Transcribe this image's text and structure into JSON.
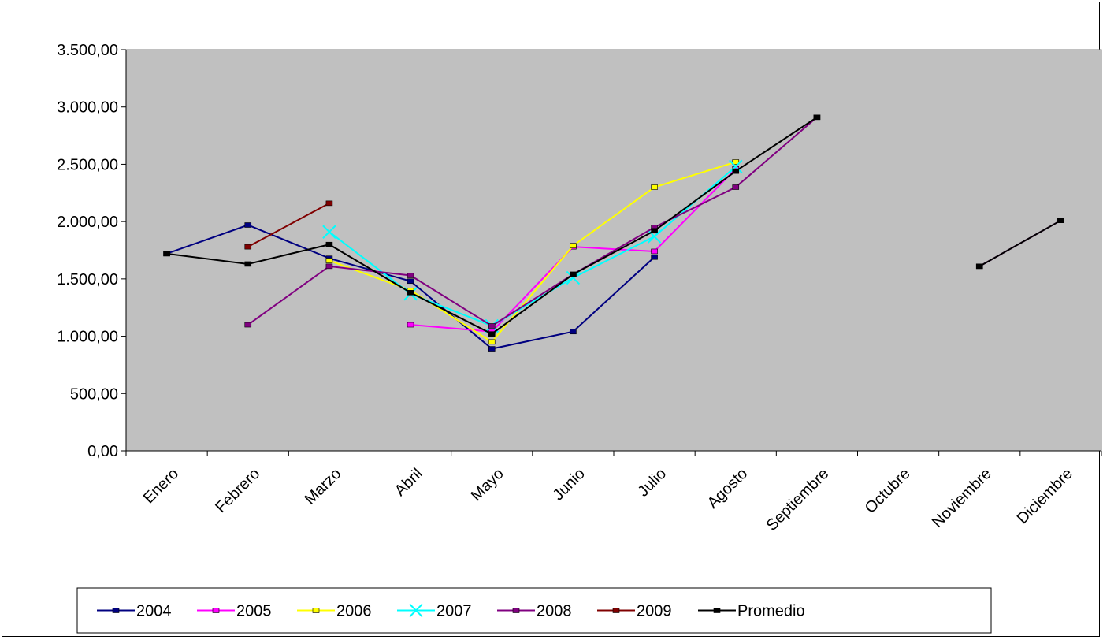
{
  "chart_data": {
    "type": "line",
    "title": "",
    "xlabel": "",
    "ylabel": "",
    "categories": [
      "Enero",
      "Febrero",
      "Marzo",
      "Abril",
      "Mayo",
      "Junio",
      "Julio",
      "Agosto",
      "Septiembre",
      "Octubre",
      "Noviembre",
      "Diciembre"
    ],
    "ylim": [
      0,
      3500
    ],
    "yticks": [
      0,
      500,
      1000,
      1500,
      2000,
      2500,
      3000,
      3500
    ],
    "ytick_labels": [
      "0,00",
      "500,00",
      "1.000,00",
      "1.500,00",
      "2.000,00",
      "2.500,00",
      "3.000,00",
      "3.500,00"
    ],
    "grid": false,
    "plot_background": "#c0c0c0",
    "legend_position": "bottom",
    "series": [
      {
        "name": "2004",
        "color": "#000080",
        "marker": "square",
        "values": [
          1720,
          1970,
          1680,
          1480,
          890,
          1040,
          1690,
          null,
          null,
          null,
          null,
          null
        ]
      },
      {
        "name": "2005",
        "color": "#ff00ff",
        "marker": "square",
        "values": [
          null,
          null,
          null,
          1100,
          1040,
          1780,
          1740,
          2460,
          null,
          null,
          null,
          null
        ]
      },
      {
        "name": "2006",
        "color": "#ffff00",
        "marker": "square",
        "values": [
          null,
          null,
          1660,
          1400,
          950,
          1790,
          2300,
          2520,
          null,
          null,
          null,
          null
        ]
      },
      {
        "name": "2007",
        "color": "#00ffff",
        "marker": "x",
        "values": [
          null,
          null,
          1910,
          1370,
          1090,
          1510,
          1870,
          2480,
          null,
          null,
          null,
          null
        ]
      },
      {
        "name": "2008",
        "color": "#800080",
        "marker": "square",
        "values": [
          null,
          1100,
          1610,
          1530,
          1090,
          1540,
          1950,
          2300,
          2910,
          null,
          1610,
          2010
        ]
      },
      {
        "name": "2009",
        "color": "#800000",
        "marker": "square",
        "values": [
          null,
          1780,
          2160,
          null,
          null,
          null,
          null,
          null,
          null,
          null,
          null,
          null
        ]
      },
      {
        "name": "Promedio",
        "color": "#000000",
        "marker": "square",
        "values": [
          1720,
          1630,
          1800,
          1380,
          1020,
          1540,
          1920,
          2440,
          2910,
          null,
          1610,
          2010
        ]
      }
    ]
  }
}
